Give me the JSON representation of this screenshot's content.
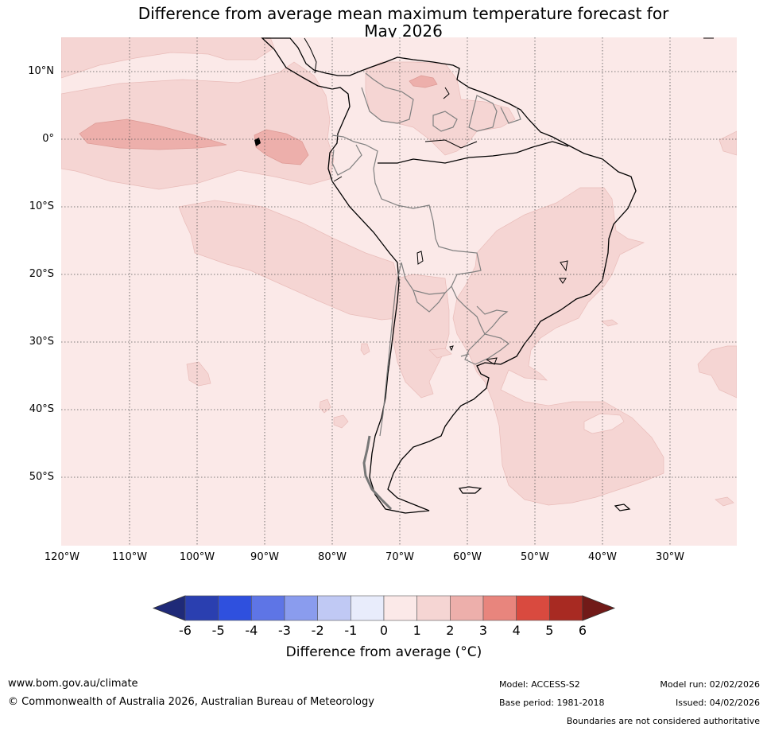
{
  "title": {
    "line1": "Difference from average mean maximum temperature forecast for",
    "line2": "May 2026"
  },
  "map": {
    "region": "South America",
    "lat_labels": [
      "10°N",
      "0°",
      "10°S",
      "20°S",
      "30°S",
      "40°S",
      "50°S"
    ],
    "lon_labels": [
      "120°W",
      "110°W",
      "100°W",
      "90°W",
      "80°W",
      "70°W",
      "60°W",
      "50°W",
      "40°W",
      "30°W"
    ]
  },
  "legend": {
    "ticks": [
      "-6",
      "-5",
      "-4",
      "-3",
      "-2",
      "-1",
      "0",
      "1",
      "2",
      "3",
      "4",
      "5",
      "6"
    ],
    "colors": [
      "#1f2a78",
      "#2a3fb0",
      "#2f50de",
      "#5e75e6",
      "#8a9cee",
      "#c0c9f4",
      "#e8ecfb",
      "#fbe9e8",
      "#f5d5d3",
      "#edafab",
      "#e8857d",
      "#d94a3f",
      "#a82a22",
      "#711a18"
    ],
    "title": "Difference from average (°C)"
  },
  "footer": {
    "url": "www.bom.gov.au/climate",
    "copyright": "© Commonwealth of Australia 2026, Australian Bureau of Meteorology",
    "model": "Model: ACCESS-S2",
    "base_period": "Base period: 1981-2018",
    "model_run": "Model run: 02/02/2026",
    "issued": "Issued: 04/02/2026",
    "boundaries": "Boundaries are not considered authoritative"
  },
  "colors": {
    "anomaly_0_1": "#fbe9e8",
    "anomaly_1_2": "#f5d5d3",
    "anomaly_2_3": "#edafab",
    "coastline": "#000000",
    "borders": "#808080"
  }
}
